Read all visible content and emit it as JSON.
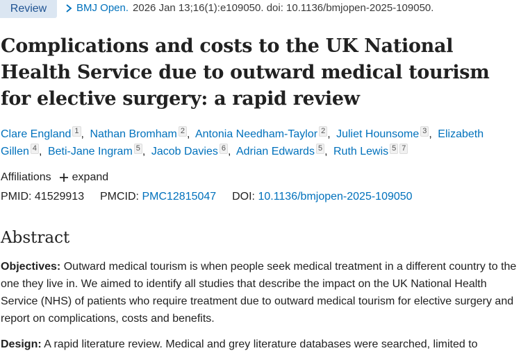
{
  "header": {
    "badge": "Review",
    "journal": "BMJ Open.",
    "citation": "2026 Jan 13;16(1):e109050. doi: 10.1136/bmjopen-2025-109050."
  },
  "title": "Complications and costs to the UK National Health Service due to outward medical tourism for elective surgery: a rapid review",
  "authors": [
    {
      "name": "Clare England",
      "affs": [
        "1"
      ]
    },
    {
      "name": "Nathan Bromham",
      "affs": [
        "2"
      ]
    },
    {
      "name": "Antonia Needham-Taylor",
      "affs": [
        "2"
      ]
    },
    {
      "name": "Juliet Hounsome",
      "affs": [
        "3"
      ]
    },
    {
      "name": "Elizabeth Gillen",
      "affs": [
        "4"
      ]
    },
    {
      "name": "Beti-Jane Ingram",
      "affs": [
        "5"
      ]
    },
    {
      "name": "Jacob Davies",
      "affs": [
        "6"
      ]
    },
    {
      "name": "Adrian Edwards",
      "affs": [
        "5"
      ]
    },
    {
      "name": "Ruth Lewis",
      "affs": [
        "5",
        "7"
      ]
    }
  ],
  "affiliations": {
    "label": "Affiliations",
    "expand_label": "expand"
  },
  "identifiers": {
    "pmid_label": "PMID:",
    "pmid": "41529913",
    "pmcid_label": "PMCID:",
    "pmcid": "PMC12815047",
    "doi_label": "DOI:",
    "doi": "10.1136/bmjopen-2025-109050"
  },
  "abstract": {
    "heading": "Abstract",
    "sections": [
      {
        "label": "Objectives:",
        "text": "Outward medical tourism is when people seek medical treatment in a different country to the one they live in. We aimed to identify all studies that describe the impact on the UK National Health Service (NHS) of patients who require treatment due to outward medical tourism for elective surgery and report on complications, costs and benefits."
      },
      {
        "label": "Design:",
        "text": "A rapid literature review. Medical and grey literature databases were searched, limited to"
      }
    ]
  },
  "colors": {
    "link": "#0071bc",
    "badge_bg": "#dbe6f2",
    "text": "#212121"
  }
}
